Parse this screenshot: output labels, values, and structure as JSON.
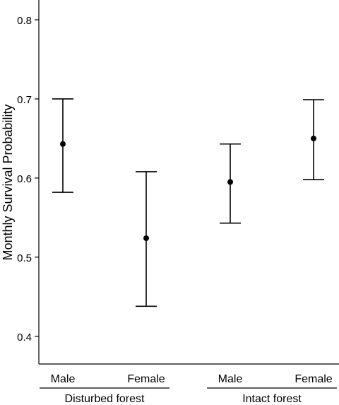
{
  "chart_data": {
    "type": "scatter",
    "title": "",
    "xlabel": "",
    "ylabel": "Monthly Survival Probability",
    "ylim": [
      0.365,
      0.825
    ],
    "yticks": [
      0.4,
      0.5,
      0.6,
      0.7,
      0.8
    ],
    "grid": false,
    "error_bars": true,
    "groups": [
      {
        "label": "Disturbed forest",
        "categories": [
          "Male",
          "Female"
        ]
      },
      {
        "label": "Intact forest",
        "categories": [
          "Male",
          "Female"
        ]
      }
    ],
    "points": [
      {
        "group": "Disturbed forest",
        "category": "Male",
        "value": 0.643,
        "lower": 0.582,
        "upper": 0.7
      },
      {
        "group": "Disturbed forest",
        "category": "Female",
        "value": 0.524,
        "lower": 0.438,
        "upper": 0.608
      },
      {
        "group": "Intact forest",
        "category": "Male",
        "value": 0.595,
        "lower": 0.543,
        "upper": 0.643
      },
      {
        "group": "Intact forest",
        "category": "Female",
        "value": 0.65,
        "lower": 0.598,
        "upper": 0.699
      }
    ]
  }
}
